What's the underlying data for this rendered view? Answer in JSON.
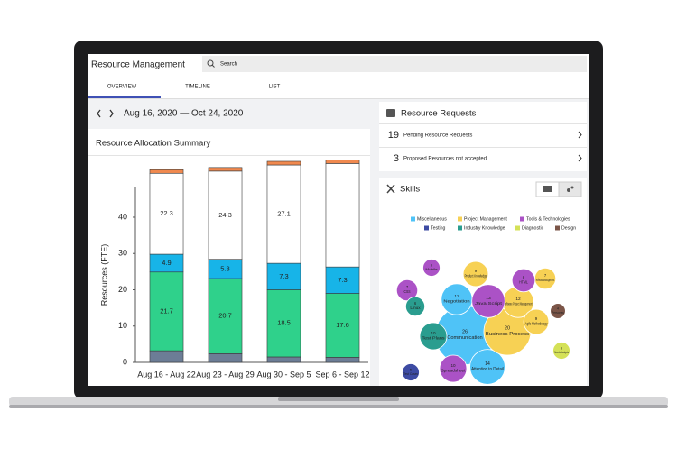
{
  "header": {
    "title": "Resource Management",
    "search": "Search"
  },
  "tabs": [
    "OVERVIEW",
    "TIMELINE",
    "LIST"
  ],
  "date_range": "Aug 16, 2020 — Oct 24, 2020",
  "allocation": {
    "title": "Resource Allocation Summary"
  },
  "resource_requests": {
    "title": "Resource Requests",
    "items": [
      {
        "count": 19,
        "label": "Pending Resource Requests"
      },
      {
        "count": 3,
        "label": "Proposed Resources not accepted"
      }
    ]
  },
  "skills": {
    "title": "Skills"
  },
  "chart_data": [
    {
      "type": "bar",
      "stacked": true,
      "outline": "#3a3a3a",
      "ylabel": "Resources (FTE)",
      "categories": [
        "Aug 16 - Aug 22",
        "Aug 23 - Aug 29",
        "Aug 30 - Sep 5",
        "Sep 6 - Sep 12"
      ],
      "ylim": [
        0,
        55
      ],
      "yticks": [
        0,
        10,
        20,
        30,
        40
      ],
      "series": [
        {
          "color": "#6c7d96",
          "values": [
            3.2,
            2.4,
            1.5,
            1.4
          ]
        },
        {
          "color": "#2fd18b",
          "values": [
            21.7,
            20.7,
            18.5,
            17.6
          ],
          "value_labels": [
            "21.7",
            "20.7",
            "18.5",
            "17.6"
          ]
        },
        {
          "color": "#17b4e8",
          "values": [
            4.9,
            5.3,
            7.3,
            7.3
          ],
          "value_labels": [
            "4.9",
            "5.3",
            "7.3",
            "7.3"
          ]
        },
        {
          "color": "#ffffff",
          "values": [
            22.3,
            24.3,
            27.1,
            28.5
          ],
          "value_labels": [
            "22.3",
            "24.3",
            "27.1",
            null
          ]
        },
        {
          "color": "#f0894f",
          "values": [
            1,
            1,
            1,
            1
          ]
        }
      ]
    },
    {
      "type": "bubble",
      "series": [
        {
          "name": "Miscellaneous",
          "color": "#4fc3f7",
          "labels": [
            "Communication",
            "Negotiation",
            "Attention to Detail"
          ],
          "values": [
            26,
            12,
            14
          ]
        },
        {
          "name": "Project Management",
          "color": "#f7d154",
          "labels": [
            "Business Process",
            "Software Project Management",
            "Product Knowledge",
            "Agile Methodology",
            "Release Management"
          ],
          "values": [
            20,
            12,
            9,
            9,
            7
          ]
        },
        {
          "name": "Tools & Technologies",
          "color": "#ab52c6",
          "labels": [
            "Java Script",
            "Spreadsheet",
            "HTML",
            "CSS",
            "Mobile"
          ],
          "values": [
            13,
            10,
            8,
            7,
            5
          ]
        },
        {
          "name": "Testing",
          "color": "#3d4ba3",
          "labels": [
            "Test Cases"
          ],
          "values": [
            5
          ]
        },
        {
          "name": "Industry Knowledge",
          "color": "#2a9d8f",
          "labels": [
            "Test Plans",
            "Linux"
          ],
          "values": [
            10,
            6
          ]
        },
        {
          "name": "Diagnostic",
          "color": "#d4e157",
          "labels": [
            "Needs Analysis"
          ],
          "values": [
            5
          ]
        },
        {
          "name": "Design",
          "color": "#7b5548",
          "labels": [
            "Personas"
          ],
          "values": [
            4
          ]
        }
      ]
    }
  ]
}
